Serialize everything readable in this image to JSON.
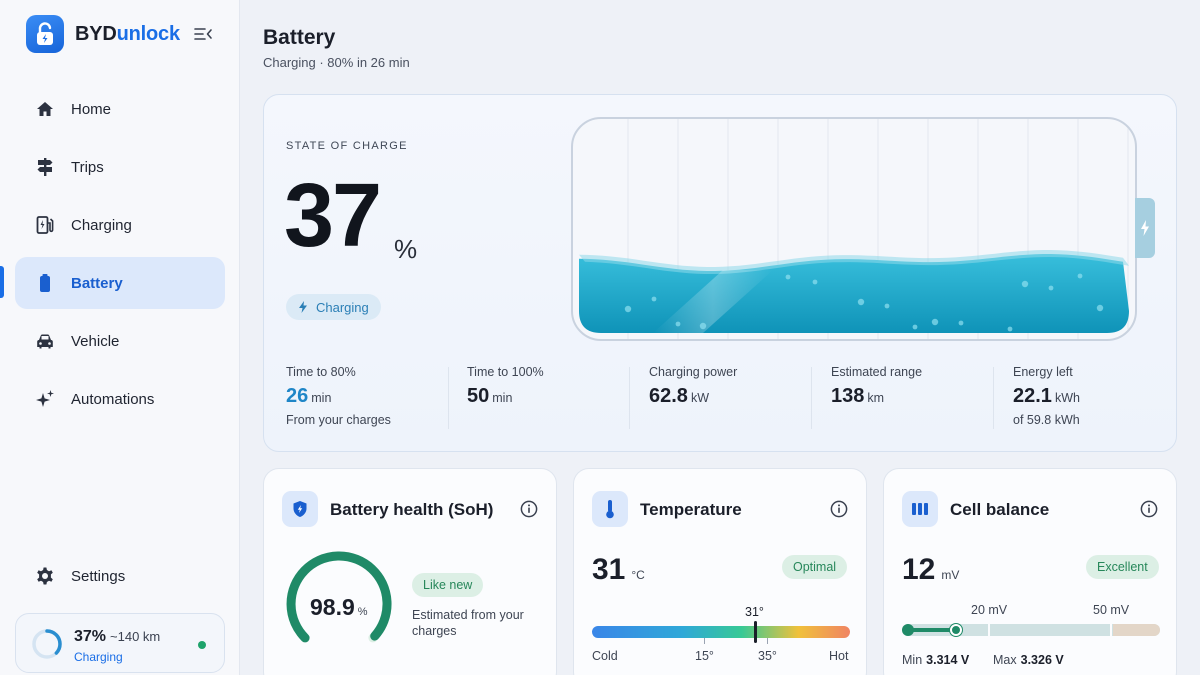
{
  "brand": {
    "name_a": "BYD",
    "name_b": "unlock"
  },
  "nav": {
    "items": [
      {
        "label": "Home",
        "icon": "home-icon"
      },
      {
        "label": "Trips",
        "icon": "signpost-icon"
      },
      {
        "label": "Charging",
        "icon": "ev-station-icon"
      },
      {
        "label": "Battery",
        "icon": "battery-icon",
        "active": true
      },
      {
        "label": "Vehicle",
        "icon": "car-icon"
      },
      {
        "label": "Automations",
        "icon": "sparkle-icon"
      }
    ],
    "settings": "Settings"
  },
  "mini_status": {
    "percent": "37%",
    "range": "~140 km",
    "state": "Charging",
    "level": 0.37
  },
  "header": {
    "title": "Battery",
    "subtitle": "Charging · 80% in 26 min"
  },
  "hero": {
    "soc_label": "STATE OF CHARGE",
    "soc_value": "37",
    "soc_unit": "%",
    "status_pill": "Charging",
    "fill_level": 0.37,
    "stats": [
      {
        "label": "Time to 80%",
        "value": "26",
        "unit": "min",
        "foot": "From your charges",
        "highlight": true
      },
      {
        "label": "Time to 100%",
        "value": "50",
        "unit": "min",
        "foot": ""
      },
      {
        "label": "Charging power",
        "value": "62.8",
        "unit": "kW",
        "foot": ""
      },
      {
        "label": "Estimated range",
        "value": "138",
        "unit": "km",
        "foot": ""
      },
      {
        "label": "Energy left",
        "value": "22.1",
        "unit": "kWh",
        "foot": "of 59.8 kWh"
      }
    ]
  },
  "health": {
    "title": "Battery health (SoH)",
    "value": "98.9",
    "unit": "%",
    "badge": "Like new",
    "note": "Estimated from your charges",
    "level": 0.989
  },
  "temperature": {
    "title": "Temperature",
    "value": "31",
    "unit": "°C",
    "badge": "Optimal",
    "current_label": "31°",
    "scale": {
      "low": "Cold",
      "t1": "15°",
      "t2": "35°",
      "high": "Hot"
    }
  },
  "cell_balance": {
    "title": "Cell balance",
    "value": "12",
    "unit": "mV",
    "badge": "Excellent",
    "tick1": "20 mV",
    "tick2": "50 mV",
    "min_label": "Min",
    "min_value": "3.314 V",
    "max_label": "Max",
    "max_value": "3.326 V"
  },
  "colors": {
    "accent": "#1a6ee6",
    "water": "#1a9fc0",
    "good": "#1f8a67"
  }
}
